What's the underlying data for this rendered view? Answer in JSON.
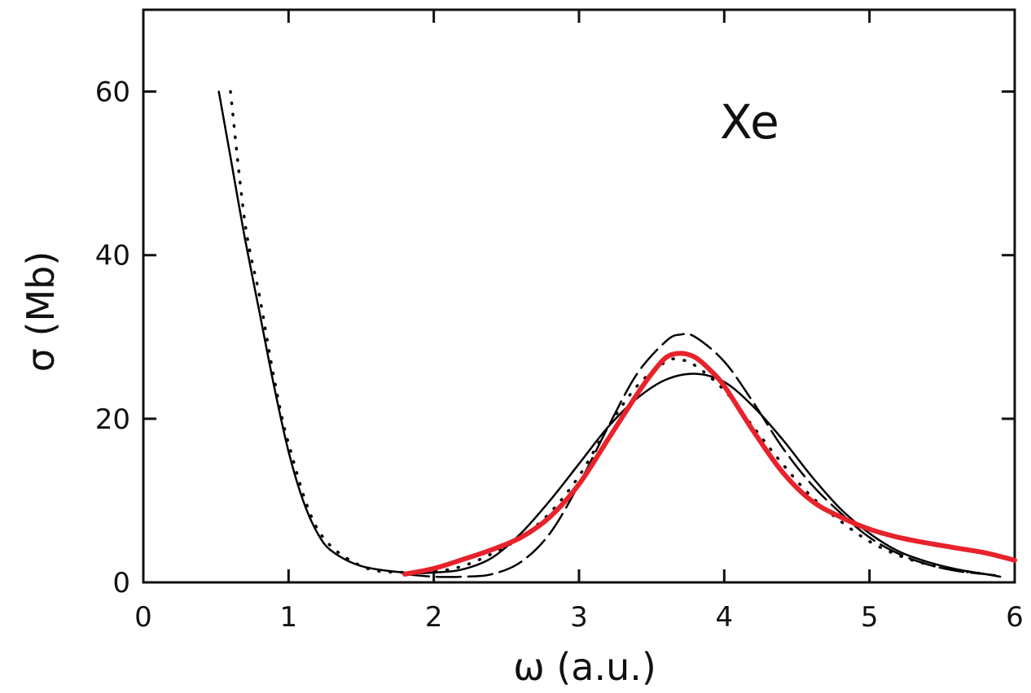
{
  "chart_data": {
    "type": "line",
    "title": "",
    "annotation": "Xe",
    "xlabel": "ω (a.u.)",
    "ylabel": "σ (Mb)",
    "xlim": [
      0,
      6
    ],
    "ylim": [
      0,
      70
    ],
    "xticks": [
      "0",
      "1",
      "2",
      "3",
      "4",
      "5",
      "6"
    ],
    "yticks": [
      "0",
      "20",
      "40",
      "60"
    ],
    "grid": false,
    "series": [
      {
        "style": "solid",
        "color": "#000000",
        "x": [
          0.52,
          0.6,
          0.7,
          0.8,
          0.9,
          1.0,
          1.1,
          1.2,
          1.3,
          1.5,
          1.8,
          2.0,
          2.2,
          2.4,
          2.6,
          2.8,
          3.0,
          3.2,
          3.4,
          3.6,
          3.8,
          4.0,
          4.2,
          4.4,
          4.6,
          4.8,
          5.0,
          5.2,
          5.4,
          5.6,
          5.8,
          5.9
        ],
        "y": [
          60,
          52,
          42,
          33,
          24,
          16,
          10,
          6,
          3.8,
          2,
          1.2,
          1.2,
          1.6,
          3,
          6,
          10,
          14.5,
          19,
          22.5,
          24.8,
          25.5,
          24.5,
          21.5,
          17.5,
          13,
          9,
          6,
          3.8,
          2.5,
          1.6,
          1,
          0.7
        ]
      },
      {
        "style": "dashed",
        "color": "#000000",
        "x": [
          1.8,
          2.0,
          2.2,
          2.4,
          2.6,
          2.8,
          3.0,
          3.2,
          3.4,
          3.6,
          3.7,
          3.8,
          4.0,
          4.2,
          4.4,
          4.6,
          4.8,
          5.0,
          5.2,
          5.4,
          5.6,
          5.8,
          5.9
        ],
        "y": [
          1,
          0.7,
          0.7,
          1,
          2.5,
          6,
          12,
          19,
          25.5,
          29.5,
          30.3,
          30,
          27,
          22,
          16.5,
          12,
          8.5,
          5.5,
          3.5,
          2.2,
          1.4,
          1,
          0.8
        ]
      },
      {
        "style": "dotted",
        "color": "#000000",
        "x": [
          0.6,
          0.7,
          0.8,
          0.9,
          1.0,
          1.2,
          1.5,
          1.8,
          2.0,
          2.2,
          2.4,
          2.6,
          2.8,
          3.0,
          3.2,
          3.4,
          3.6,
          3.7,
          3.8,
          4.0,
          4.2,
          4.4,
          4.6,
          4.8,
          5.0,
          5.2,
          5.4,
          5.6,
          5.8
        ],
        "y": [
          60,
          44,
          35,
          25,
          17,
          6.5,
          2,
          1.2,
          1.3,
          2,
          3.5,
          5.5,
          8.5,
          13,
          19,
          24,
          27,
          27.2,
          26.5,
          23.5,
          19,
          14.5,
          10.5,
          7.5,
          5,
          3.3,
          2.2,
          1.5,
          1
        ]
      },
      {
        "style": "solid-thick",
        "color": "#e8222b",
        "x": [
          1.8,
          2.0,
          2.2,
          2.4,
          2.6,
          2.8,
          3.0,
          3.2,
          3.4,
          3.5,
          3.6,
          3.7,
          3.8,
          3.9,
          4.0,
          4.2,
          4.4,
          4.6,
          4.8,
          5.0,
          5.2,
          5.4,
          5.6,
          5.8,
          6.0
        ],
        "y": [
          1,
          1.7,
          2.8,
          4,
          5.5,
          8,
          12,
          17.5,
          23,
          25.5,
          27.5,
          28,
          27.5,
          26,
          24,
          18.5,
          13.5,
          10,
          8,
          6.5,
          5.5,
          4.8,
          4.2,
          3.6,
          2.7
        ]
      }
    ]
  }
}
